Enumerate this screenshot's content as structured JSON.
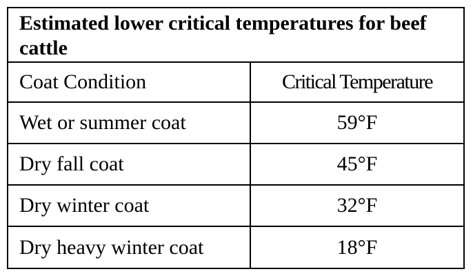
{
  "table": {
    "title": "Estimated lower critical temperatures for beef cattle",
    "columns": [
      "Coat Condition",
      "Critical Temperature"
    ],
    "rows": [
      {
        "condition": "Wet or summer coat",
        "temperature": "59°F"
      },
      {
        "condition": "Dry fall coat",
        "temperature": "45°F"
      },
      {
        "condition": "Dry winter coat",
        "temperature": "32°F"
      },
      {
        "condition": "Dry heavy winter coat",
        "temperature": "18°F"
      }
    ]
  }
}
